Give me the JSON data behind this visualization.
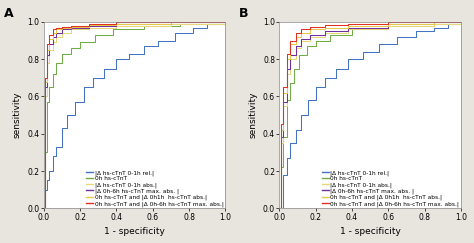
{
  "panel_A_curves": {
    "blue": {
      "color": "#4472C4",
      "label": "|Δ hs-cTnT 0-1h rel.|",
      "x": [
        0.0,
        0.01,
        0.02,
        0.03,
        0.05,
        0.07,
        0.1,
        0.13,
        0.17,
        0.22,
        0.27,
        0.33,
        0.4,
        0.47,
        0.55,
        0.63,
        0.72,
        0.82,
        0.9,
        1.0
      ],
      "y": [
        0.0,
        0.1,
        0.15,
        0.2,
        0.28,
        0.33,
        0.43,
        0.5,
        0.57,
        0.65,
        0.7,
        0.75,
        0.8,
        0.83,
        0.87,
        0.9,
        0.94,
        0.97,
        0.99,
        1.0
      ]
    },
    "green": {
      "color": "#70AD47",
      "label": "0h hs-cTnT",
      "x": [
        0.0,
        0.01,
        0.02,
        0.03,
        0.05,
        0.07,
        0.1,
        0.15,
        0.2,
        0.28,
        0.38,
        0.55,
        0.75,
        1.0
      ],
      "y": [
        0.0,
        0.3,
        0.57,
        0.65,
        0.72,
        0.78,
        0.83,
        0.86,
        0.89,
        0.93,
        0.96,
        0.98,
        0.99,
        1.0
      ]
    },
    "lightyellow": {
      "color": "#E6D87A",
      "label": "|Δ hs-cTnT 0-1h abs.|",
      "x": [
        0.0,
        0.01,
        0.02,
        0.03,
        0.05,
        0.07,
        0.1,
        0.15,
        0.25,
        0.4,
        0.7,
        1.0
      ],
      "y": [
        0.0,
        0.6,
        0.78,
        0.85,
        0.89,
        0.92,
        0.94,
        0.96,
        0.97,
        0.98,
        0.99,
        1.0
      ]
    },
    "purple": {
      "color": "#7030A0",
      "label": "|Δ 0h-6h hs-cTnT max. abs. |",
      "x": [
        0.0,
        0.01,
        0.02,
        0.03,
        0.05,
        0.07,
        0.1,
        0.15,
        0.25,
        0.4,
        0.7,
        1.0
      ],
      "y": [
        0.0,
        0.65,
        0.82,
        0.88,
        0.92,
        0.94,
        0.96,
        0.97,
        0.98,
        0.99,
        1.0,
        1.0
      ]
    },
    "yellow": {
      "color": "#E8C84A",
      "label": "0h hs-cTnT and |Δ 0h1h  hs-cTnT abs.|",
      "x": [
        0.0,
        0.01,
        0.02,
        0.03,
        0.05,
        0.07,
        0.1,
        0.15,
        0.25,
        0.4,
        0.7,
        1.0
      ],
      "y": [
        0.0,
        0.68,
        0.85,
        0.91,
        0.94,
        0.96,
        0.97,
        0.975,
        0.985,
        0.99,
        1.0,
        1.0
      ]
    },
    "red": {
      "color": "#E03020",
      "label": "0h hs-cTnT and |Δ 0h-6h hs-cTnT max. abs.|",
      "x": [
        0.0,
        0.01,
        0.02,
        0.03,
        0.05,
        0.07,
        0.1,
        0.15,
        0.25,
        0.4,
        0.7,
        1.0
      ],
      "y": [
        0.0,
        0.7,
        0.88,
        0.93,
        0.96,
        0.97,
        0.975,
        0.98,
        0.99,
        1.0,
        1.0,
        1.0
      ]
    }
  },
  "panel_B_curves": {
    "blue": {
      "color": "#4472C4",
      "label": "|Δ hs-cTnT 0-1h rel.|",
      "x": [
        0.0,
        0.02,
        0.04,
        0.06,
        0.09,
        0.12,
        0.16,
        0.2,
        0.25,
        0.31,
        0.38,
        0.46,
        0.55,
        0.65,
        0.75,
        0.85,
        0.93,
        1.0
      ],
      "y": [
        0.0,
        0.18,
        0.27,
        0.35,
        0.42,
        0.5,
        0.58,
        0.65,
        0.7,
        0.75,
        0.8,
        0.84,
        0.88,
        0.92,
        0.95,
        0.97,
        0.99,
        1.0
      ]
    },
    "green": {
      "color": "#70AD47",
      "label": "0h hs-cTnT",
      "x": [
        0.0,
        0.01,
        0.02,
        0.04,
        0.06,
        0.08,
        0.11,
        0.15,
        0.2,
        0.28,
        0.4,
        0.6,
        0.85,
        1.0
      ],
      "y": [
        0.0,
        0.22,
        0.38,
        0.58,
        0.67,
        0.75,
        0.82,
        0.87,
        0.9,
        0.93,
        0.96,
        0.98,
        0.99,
        1.0
      ]
    },
    "lightyellow": {
      "color": "#E6D87A",
      "label": "|Δ hs-cTnT 0-1h abs.|",
      "x": [
        0.0,
        0.01,
        0.02,
        0.04,
        0.06,
        0.09,
        0.12,
        0.17,
        0.25,
        0.38,
        0.6,
        0.85,
        1.0
      ],
      "y": [
        0.0,
        0.35,
        0.55,
        0.72,
        0.8,
        0.86,
        0.9,
        0.92,
        0.94,
        0.96,
        0.98,
        0.99,
        1.0
      ]
    },
    "purple": {
      "color": "#7030A0",
      "label": "|Δ 0h-6h hs-cTnT max. abs. |",
      "x": [
        0.0,
        0.01,
        0.02,
        0.04,
        0.06,
        0.09,
        0.12,
        0.17,
        0.25,
        0.38,
        0.6,
        0.85,
        1.0
      ],
      "y": [
        0.0,
        0.38,
        0.57,
        0.75,
        0.82,
        0.87,
        0.91,
        0.93,
        0.95,
        0.97,
        0.99,
        1.0,
        1.0
      ]
    },
    "yellow": {
      "color": "#E8C84A",
      "label": "0h hs-cTnT and |Δ 0h1h  hs-cTnT abs.|",
      "x": [
        0.0,
        0.01,
        0.02,
        0.04,
        0.06,
        0.09,
        0.12,
        0.17,
        0.25,
        0.38,
        0.6,
        0.85,
        1.0
      ],
      "y": [
        0.0,
        0.42,
        0.62,
        0.8,
        0.88,
        0.92,
        0.94,
        0.96,
        0.97,
        0.98,
        0.99,
        1.0,
        1.0
      ]
    },
    "red": {
      "color": "#E03020",
      "label": "0h hs-cTnT and |Δ 0h-6h hs-cTnT max. abs.|",
      "x": [
        0.0,
        0.01,
        0.02,
        0.04,
        0.06,
        0.09,
        0.12,
        0.17,
        0.25,
        0.38,
        0.6,
        0.85,
        1.0
      ],
      "y": [
        0.0,
        0.45,
        0.65,
        0.83,
        0.9,
        0.94,
        0.96,
        0.975,
        0.985,
        0.99,
        1.0,
        1.0,
        1.0
      ]
    }
  },
  "xlabel": "1 - specificity",
  "ylabel": "sensitivity",
  "xlim": [
    0.0,
    1.0
  ],
  "ylim": [
    0.0,
    1.0
  ],
  "tick_fontsize": 5.5,
  "label_fontsize": 6.5,
  "legend_fontsize": 4.2,
  "panel_A_label": "A",
  "panel_B_label": "B",
  "bg_color": "#e8e4de",
  "plot_bg": "#ffffff"
}
